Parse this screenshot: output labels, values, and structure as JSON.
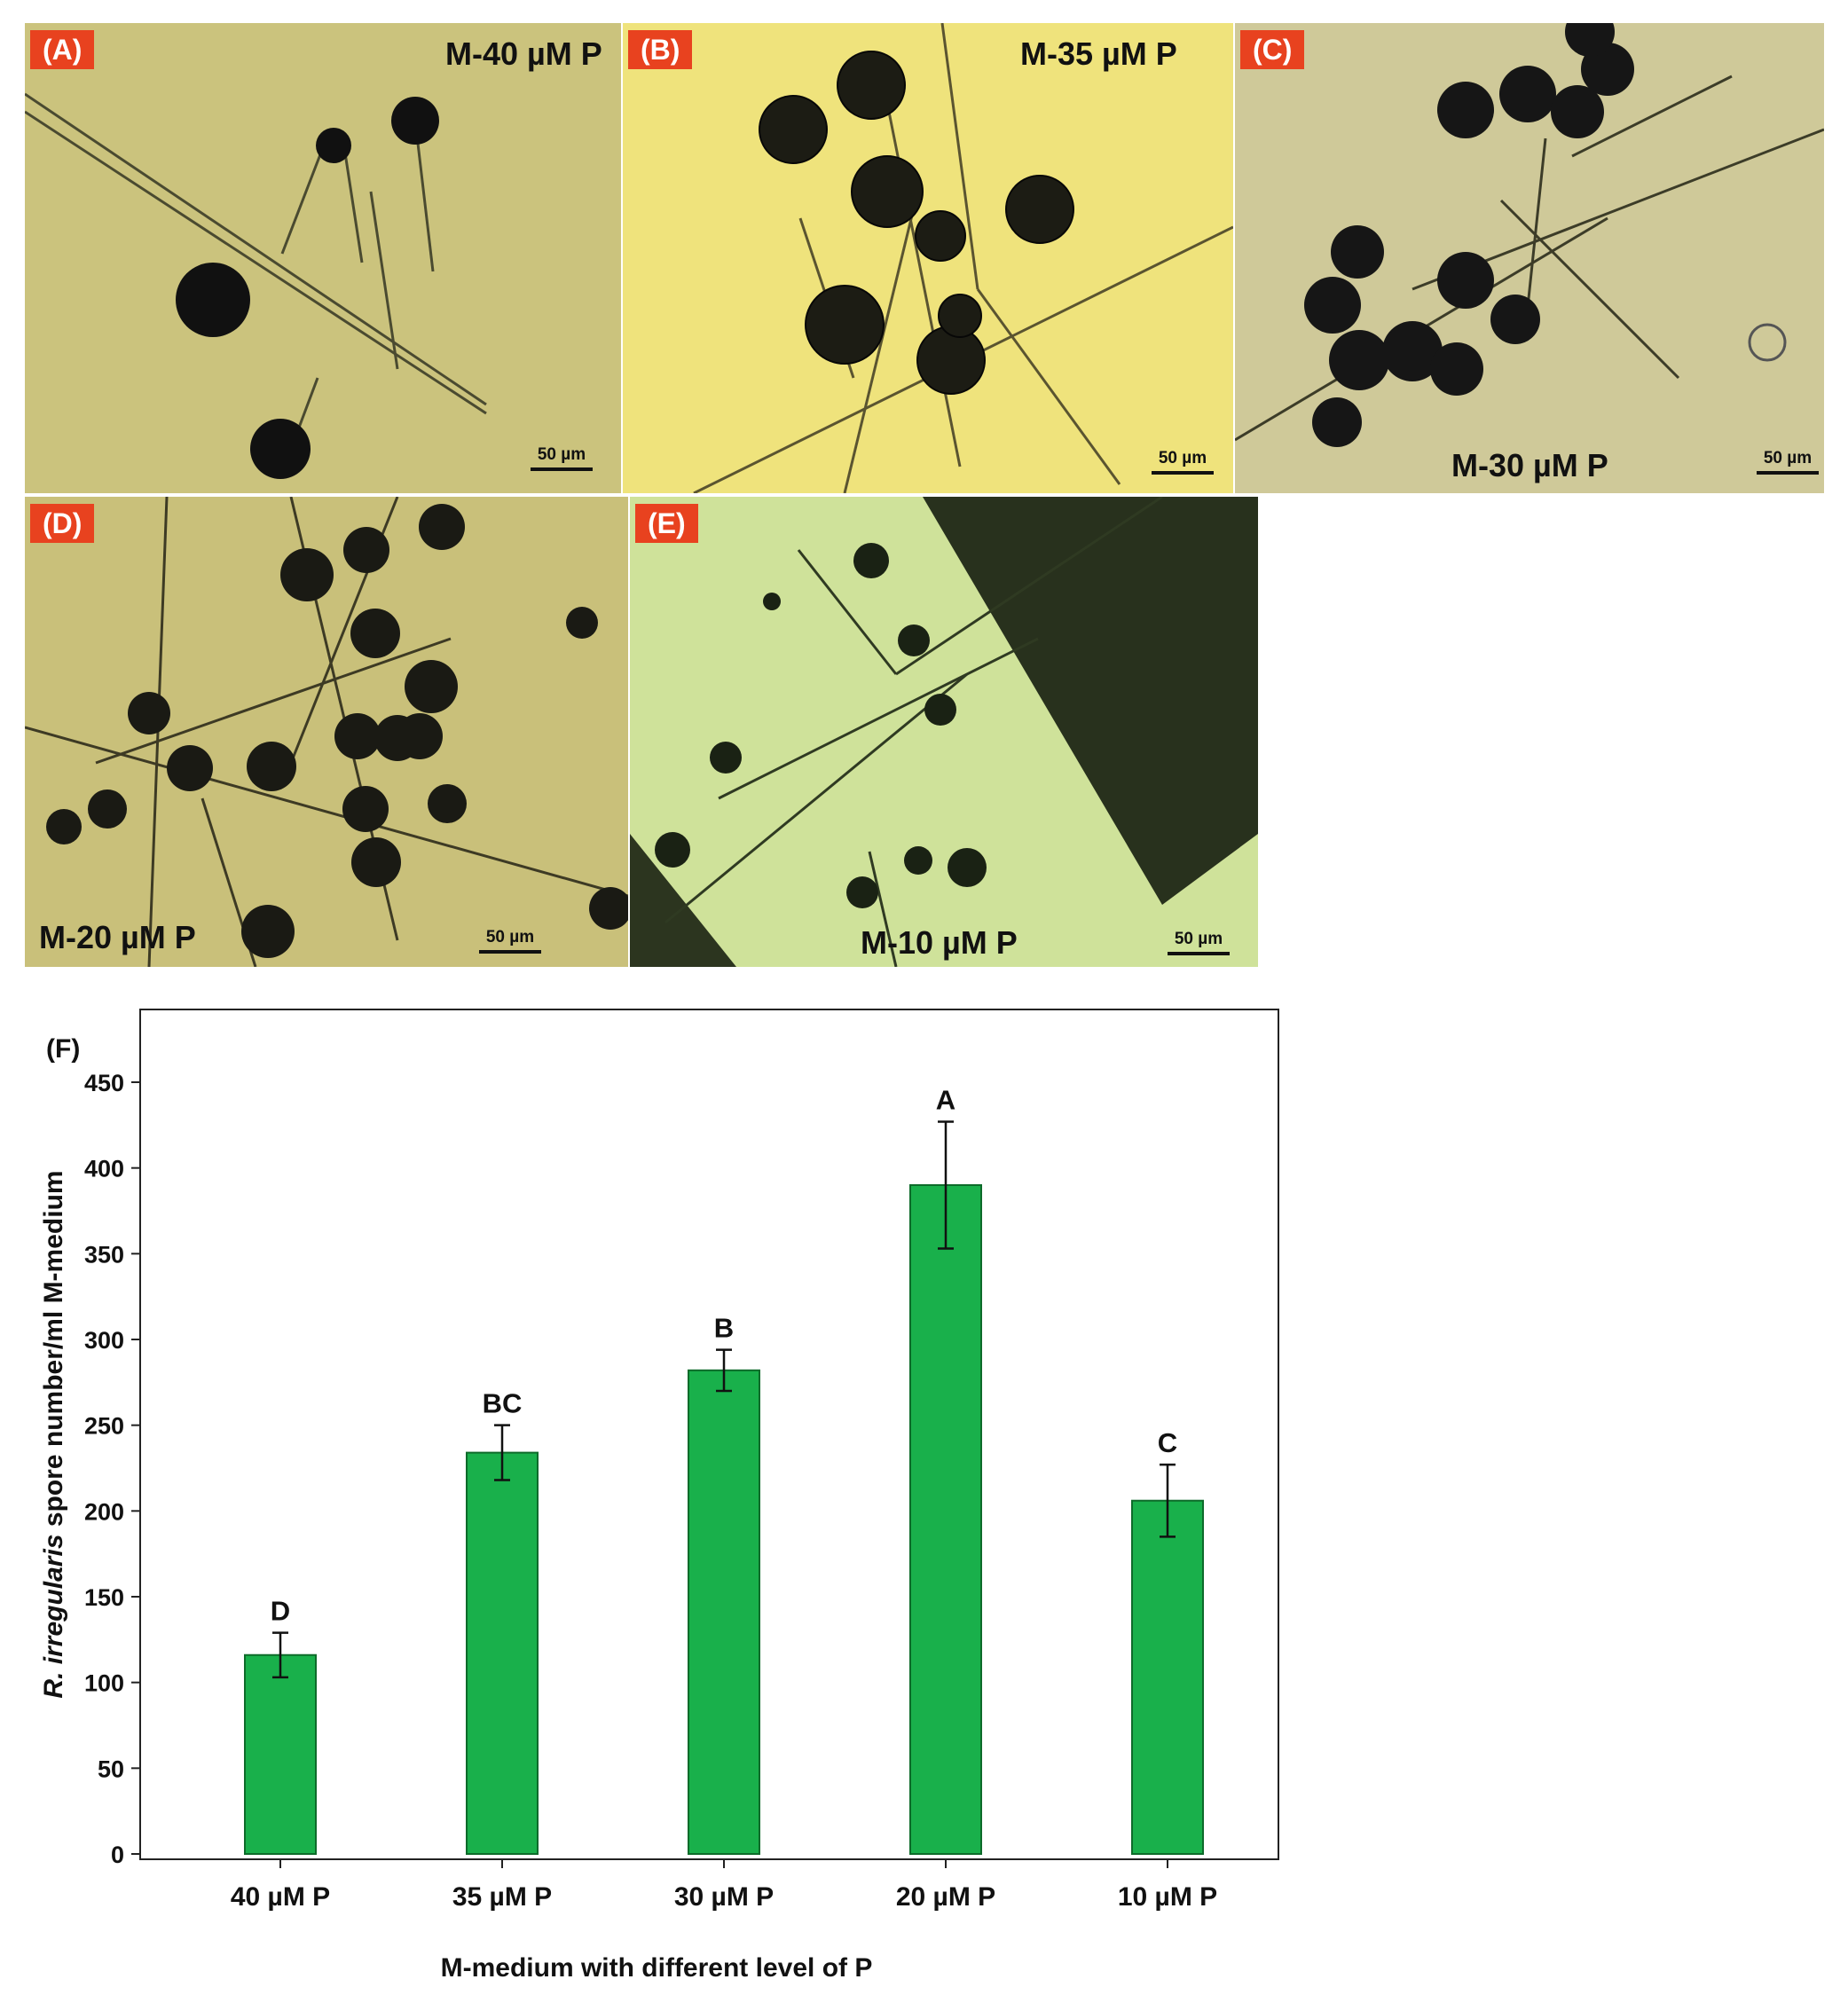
{
  "panels": [
    {
      "id": "A",
      "badge": "(A)",
      "label": "M-40 µM P",
      "scale": "50 µm",
      "bg": "#cbc37d"
    },
    {
      "id": "B",
      "badge": "(B)",
      "label": "M-35 µM P",
      "scale": "50 µm",
      "bg": "#efe37c"
    },
    {
      "id": "C",
      "badge": "(C)",
      "label": "M-30 µM P",
      "scale": "50 µm",
      "bg": "#cfc999"
    },
    {
      "id": "D",
      "badge": "(D)",
      "label": "M-20 µM P",
      "scale": "50 µm",
      "bg": "#c9c07a"
    },
    {
      "id": "E",
      "badge": "(E)",
      "label": "M-10 µM P",
      "scale": "50 µm",
      "bg": "#cfe29a"
    }
  ],
  "chart_data": {
    "type": "bar",
    "panel_label": "(F)",
    "categories": [
      "40 µM P",
      "35 µM P",
      "30 µM P",
      "20 µM P",
      "10 µM P"
    ],
    "values": [
      116,
      234,
      282,
      390,
      206
    ],
    "errors": [
      13,
      16,
      12,
      37,
      21
    ],
    "significance": [
      "D",
      "BC",
      "B",
      "A",
      "C"
    ],
    "ylim": [
      0,
      450
    ],
    "yticks": [
      0,
      50,
      100,
      150,
      200,
      250,
      300,
      350,
      400,
      450
    ],
    "ylabel_italic": "R. irregularis",
    "ylabel_rest": " spore number/ml M-medium",
    "xlabel": "M-medium with different level of P",
    "bar_color": "#19b04b",
    "bar_edge": "#0d6b2a",
    "grid": false
  }
}
